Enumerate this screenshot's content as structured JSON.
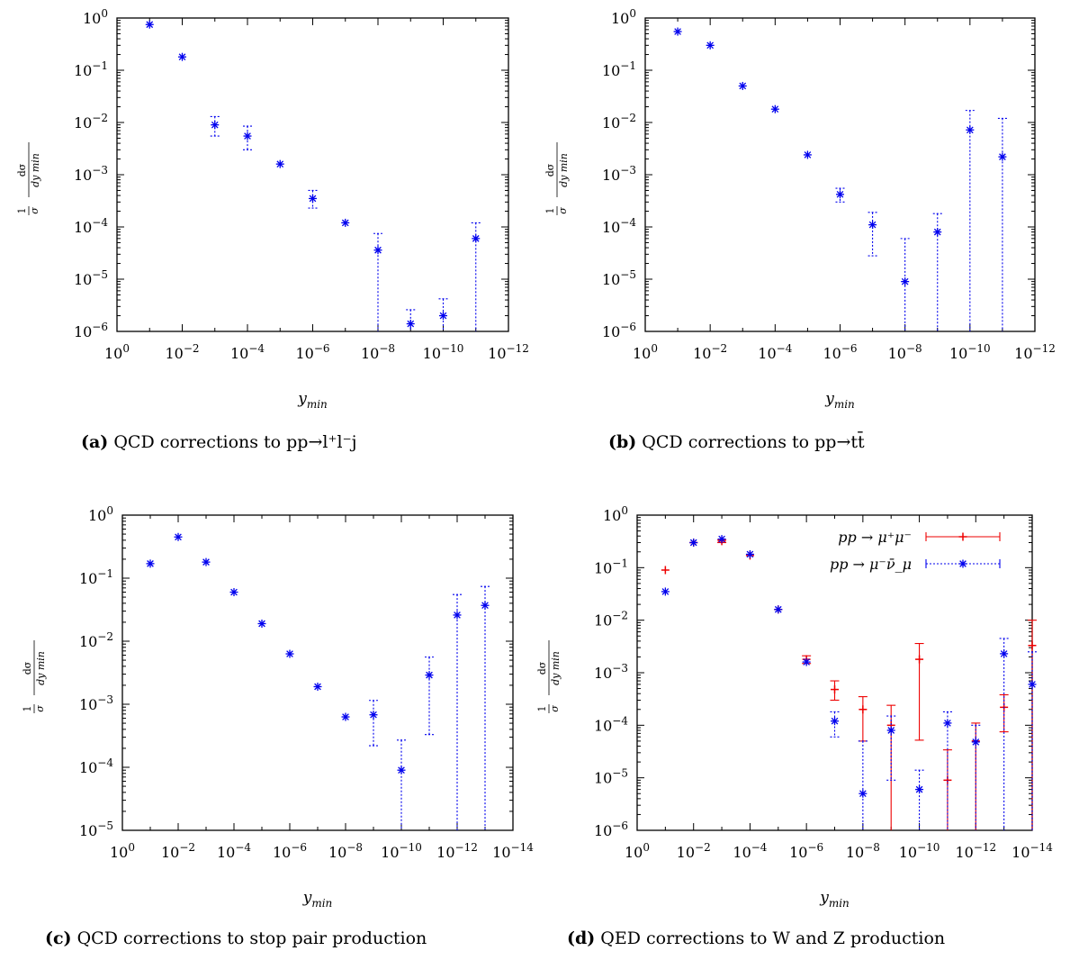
{
  "chart_data": [
    {
      "id": "a",
      "type": "scatter",
      "caption_tag": "(a)",
      "caption_text": "QCD corrections to pp→l⁺l⁻j",
      "xlabel": "y_min",
      "ylabel": "1/σ dσ/dy_min",
      "x_scale": "log",
      "y_scale": "log",
      "x_reversed": true,
      "xlim": [
        1,
        1e-12
      ],
      "ylim": [
        1e-06,
        1
      ],
      "xticks": [
        0,
        -2,
        -4,
        -6,
        -8,
        -10,
        -12
      ],
      "yticks": [
        0,
        -1,
        -2,
        -3,
        -4,
        -5,
        -6
      ],
      "legend": "none",
      "series": [
        {
          "color": "#0000ee",
          "marker": "asterisk",
          "error_style": "dotted",
          "points": [
            {
              "x": 0.1,
              "y": 0.75,
              "lo": 0.75,
              "hi": 0.75
            },
            {
              "x": 0.01,
              "y": 0.18,
              "lo": 0.18,
              "hi": 0.18
            },
            {
              "x": 0.001,
              "y": 0.009,
              "lo": 0.0055,
              "hi": 0.013
            },
            {
              "x": 0.0001,
              "y": 0.0055,
              "lo": 0.003,
              "hi": 0.0085
            },
            {
              "x": 1e-05,
              "y": 0.0016,
              "lo": 0.0016,
              "hi": 0.0016
            },
            {
              "x": 1e-06,
              "y": 0.00035,
              "lo": 0.00023,
              "hi": 0.0005
            },
            {
              "x": 1e-07,
              "y": 0.00012,
              "lo": 0.00012,
              "hi": 0.00012
            },
            {
              "x": 1e-08,
              "y": 3.6e-05,
              "lo": 1e-06,
              "hi": 7.5e-05
            },
            {
              "x": 1e-09,
              "y": 1.4e-06,
              "lo": 1e-06,
              "hi": 2.6e-06
            },
            {
              "x": 1e-10,
              "y": 2e-06,
              "lo": 1e-06,
              "hi": 4.2e-06
            },
            {
              "x": 1e-11,
              "y": 6e-05,
              "lo": 1e-06,
              "hi": 0.00012
            }
          ]
        }
      ]
    },
    {
      "id": "b",
      "type": "scatter",
      "caption_tag": "(b)",
      "caption_text": "QCD corrections to pp→tt̄",
      "xlabel": "y_min",
      "ylabel": "1/σ dσ/dy_min",
      "x_scale": "log",
      "y_scale": "log",
      "x_reversed": true,
      "xlim": [
        1,
        1e-12
      ],
      "ylim": [
        1e-06,
        1
      ],
      "xticks": [
        0,
        -2,
        -4,
        -6,
        -8,
        -10,
        -12
      ],
      "yticks": [
        0,
        -1,
        -2,
        -3,
        -4,
        -5,
        -6
      ],
      "legend": "none",
      "series": [
        {
          "color": "#0000ee",
          "marker": "asterisk",
          "error_style": "dotted",
          "points": [
            {
              "x": 0.1,
              "y": 0.55,
              "lo": 0.55,
              "hi": 0.55
            },
            {
              "x": 0.01,
              "y": 0.3,
              "lo": 0.3,
              "hi": 0.3
            },
            {
              "x": 0.001,
              "y": 0.05,
              "lo": 0.05,
              "hi": 0.05
            },
            {
              "x": 0.0001,
              "y": 0.018,
              "lo": 0.018,
              "hi": 0.018
            },
            {
              "x": 1e-05,
              "y": 0.0024,
              "lo": 0.0024,
              "hi": 0.0024
            },
            {
              "x": 1e-06,
              "y": 0.00042,
              "lo": 0.0003,
              "hi": 0.00055
            },
            {
              "x": 1e-07,
              "y": 0.00011,
              "lo": 2.8e-05,
              "hi": 0.00019
            },
            {
              "x": 1e-08,
              "y": 9e-06,
              "lo": 1e-06,
              "hi": 6e-05
            },
            {
              "x": 1e-09,
              "y": 8e-05,
              "lo": 1e-06,
              "hi": 0.00018
            },
            {
              "x": 1e-10,
              "y": 0.0072,
              "lo": 1e-06,
              "hi": 0.017
            },
            {
              "x": 1e-11,
              "y": 0.0022,
              "lo": 1e-06,
              "hi": 0.012
            }
          ]
        }
      ]
    },
    {
      "id": "c",
      "type": "scatter",
      "caption_tag": "(c)",
      "caption_text": "QCD corrections to stop pair production",
      "xlabel": "y_min",
      "ylabel": "1/σ dσ/dy_min",
      "x_scale": "log",
      "y_scale": "log",
      "x_reversed": true,
      "xlim": [
        1,
        1e-14
      ],
      "ylim": [
        1e-05,
        1
      ],
      "xticks": [
        0,
        -2,
        -4,
        -6,
        -8,
        -10,
        -12,
        -14
      ],
      "yticks": [
        0,
        -1,
        -2,
        -3,
        -4,
        -5
      ],
      "legend": "none",
      "series": [
        {
          "color": "#0000ee",
          "marker": "asterisk",
          "error_style": "dotted",
          "points": [
            {
              "x": 0.1,
              "y": 0.17,
              "lo": 0.17,
              "hi": 0.17
            },
            {
              "x": 0.01,
              "y": 0.45,
              "lo": 0.45,
              "hi": 0.45
            },
            {
              "x": 0.001,
              "y": 0.18,
              "lo": 0.18,
              "hi": 0.18
            },
            {
              "x": 0.0001,
              "y": 0.06,
              "lo": 0.06,
              "hi": 0.06
            },
            {
              "x": 1e-05,
              "y": 0.019,
              "lo": 0.019,
              "hi": 0.019
            },
            {
              "x": 1e-06,
              "y": 0.0063,
              "lo": 0.0063,
              "hi": 0.0063
            },
            {
              "x": 1e-07,
              "y": 0.0019,
              "lo": 0.0019,
              "hi": 0.0019
            },
            {
              "x": 1e-08,
              "y": 0.00063,
              "lo": 0.00063,
              "hi": 0.00063
            },
            {
              "x": 1e-09,
              "y": 0.00068,
              "lo": 0.00022,
              "hi": 0.00115
            },
            {
              "x": 1e-10,
              "y": 9e-05,
              "lo": 1e-05,
              "hi": 0.00027
            },
            {
              "x": 1e-11,
              "y": 0.0029,
              "lo": 0.00033,
              "hi": 0.0056
            },
            {
              "x": 1e-12,
              "y": 0.026,
              "lo": 1e-05,
              "hi": 0.055
            },
            {
              "x": 1e-13,
              "y": 0.037,
              "lo": 1e-05,
              "hi": 0.074
            }
          ]
        }
      ]
    },
    {
      "id": "d",
      "type": "scatter",
      "caption_tag": "(d)",
      "caption_text": "QED corrections to W and Z production",
      "xlabel": "y_min",
      "ylabel": "1/σ dσ/dy_min",
      "x_scale": "log",
      "y_scale": "log",
      "x_reversed": true,
      "xlim": [
        1,
        1e-14
      ],
      "ylim": [
        1e-06,
        1
      ],
      "xticks": [
        0,
        -2,
        -4,
        -6,
        -8,
        -10,
        -12,
        -14
      ],
      "yticks": [
        0,
        -1,
        -2,
        -3,
        -4,
        -5,
        -6
      ],
      "legend": "top-right",
      "series": [
        {
          "name": "pp → μ⁺μ⁻",
          "color": "#ee0000",
          "marker": "plus",
          "error_style": "solid",
          "points": [
            {
              "x": 0.1,
              "y": 0.09,
              "lo": 0.09,
              "hi": 0.09
            },
            {
              "x": 0.01,
              "y": 0.3,
              "lo": 0.3,
              "hi": 0.3
            },
            {
              "x": 0.001,
              "y": 0.32,
              "lo": 0.3,
              "hi": 0.34
            },
            {
              "x": 0.0001,
              "y": 0.17,
              "lo": 0.17,
              "hi": 0.17
            },
            {
              "x": 1e-05,
              "y": 0.016,
              "lo": 0.016,
              "hi": 0.016
            },
            {
              "x": 1e-06,
              "y": 0.0018,
              "lo": 0.0015,
              "hi": 0.0021
            },
            {
              "x": 1e-07,
              "y": 0.00048,
              "lo": 0.0003,
              "hi": 0.0007
            },
            {
              "x": 1e-08,
              "y": 0.0002,
              "lo": 5e-05,
              "hi": 0.00035
            },
            {
              "x": 1e-09,
              "y": 0.0001,
              "lo": 1e-06,
              "hi": 0.00024
            },
            {
              "x": 1e-10,
              "y": 0.0018,
              "lo": 5.2e-05,
              "hi": 0.0036
            },
            {
              "x": 1e-11,
              "y": 9e-06,
              "lo": 1e-06,
              "hi": 3.4e-05
            },
            {
              "x": 1e-12,
              "y": 5e-05,
              "lo": 1e-06,
              "hi": 0.00011
            },
            {
              "x": 1e-13,
              "y": 0.00022,
              "lo": 7.5e-05,
              "hi": 0.00038
            },
            {
              "x": 1e-14,
              "y": 0.0033,
              "lo": 1e-06,
              "hi": 0.01
            }
          ]
        },
        {
          "name": "pp → μ⁻ν̄_μ",
          "color": "#0000ee",
          "marker": "asterisk",
          "error_style": "dotted",
          "points": [
            {
              "x": 0.1,
              "y": 0.035,
              "lo": 0.035,
              "hi": 0.035
            },
            {
              "x": 0.01,
              "y": 0.3,
              "lo": 0.3,
              "hi": 0.3
            },
            {
              "x": 0.001,
              "y": 0.35,
              "lo": 0.35,
              "hi": 0.35
            },
            {
              "x": 0.0001,
              "y": 0.18,
              "lo": 0.18,
              "hi": 0.18
            },
            {
              "x": 1e-05,
              "y": 0.016,
              "lo": 0.016,
              "hi": 0.016
            },
            {
              "x": 1e-06,
              "y": 0.0016,
              "lo": 0.0016,
              "hi": 0.0016
            },
            {
              "x": 1e-07,
              "y": 0.00012,
              "lo": 6e-05,
              "hi": 0.00018
            },
            {
              "x": 1e-08,
              "y": 5e-06,
              "lo": 1e-06,
              "hi": 5e-05
            },
            {
              "x": 1e-09,
              "y": 8e-05,
              "lo": 9e-06,
              "hi": 0.00015
            },
            {
              "x": 1e-10,
              "y": 6e-06,
              "lo": 1e-06,
              "hi": 1.4e-05
            },
            {
              "x": 1e-11,
              "y": 0.00011,
              "lo": 1e-06,
              "hi": 0.00018
            },
            {
              "x": 1e-12,
              "y": 4.8e-05,
              "lo": 1e-06,
              "hi": 0.0001
            },
            {
              "x": 1e-13,
              "y": 0.0023,
              "lo": 1e-06,
              "hi": 0.0045
            },
            {
              "x": 1e-14,
              "y": 0.0006,
              "lo": 1e-06,
              "hi": 0.0025
            }
          ]
        }
      ]
    }
  ]
}
